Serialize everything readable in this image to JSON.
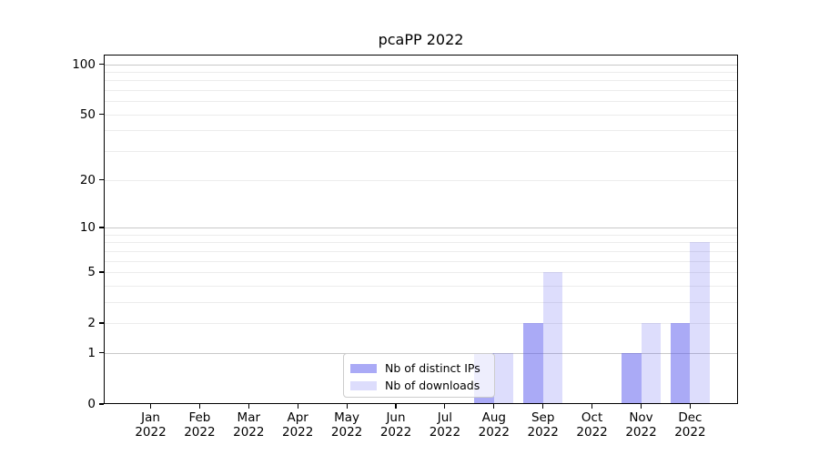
{
  "chart_data": {
    "type": "bar",
    "title": "pcaPP 2022",
    "categories": [
      "Jan",
      "Feb",
      "Mar",
      "Apr",
      "May",
      "Jun",
      "Jul",
      "Aug",
      "Sep",
      "Oct",
      "Nov",
      "Dec"
    ],
    "category_year": "2022",
    "series": [
      {
        "name": "Nb of distinct IPs",
        "fill": "rgba(85,85,238,0.5)",
        "effective_color": "#acacf7",
        "values": [
          0,
          0,
          0,
          0,
          0,
          0,
          0,
          1,
          2,
          0,
          1,
          2
        ]
      },
      {
        "name": "Nb of downloads",
        "fill": "rgba(85,85,238,0.2)",
        "effective_color": "#dcdcf9",
        "values": [
          0,
          0,
          0,
          0,
          0,
          0,
          0,
          1,
          5,
          0,
          2,
          8
        ]
      }
    ],
    "xlabel": "",
    "ylabel": "",
    "y_scale": "log10(1+y)",
    "y_tick_values": [
      0,
      1,
      2,
      5,
      10,
      20,
      50,
      100
    ],
    "ylim": [
      0,
      114
    ],
    "grid": {
      "horizontal": true,
      "major_values": [
        1,
        10,
        100
      ],
      "minor_values": [
        2,
        3,
        4,
        5,
        6,
        7,
        8,
        9,
        20,
        30,
        40,
        50,
        60,
        70,
        80,
        90
      ],
      "major_color": "#c9c9c9",
      "minor_color": "#ececec"
    },
    "legend": {
      "position": "lower center",
      "border_color": "#cccccc"
    },
    "axis_color": "#000000"
  }
}
